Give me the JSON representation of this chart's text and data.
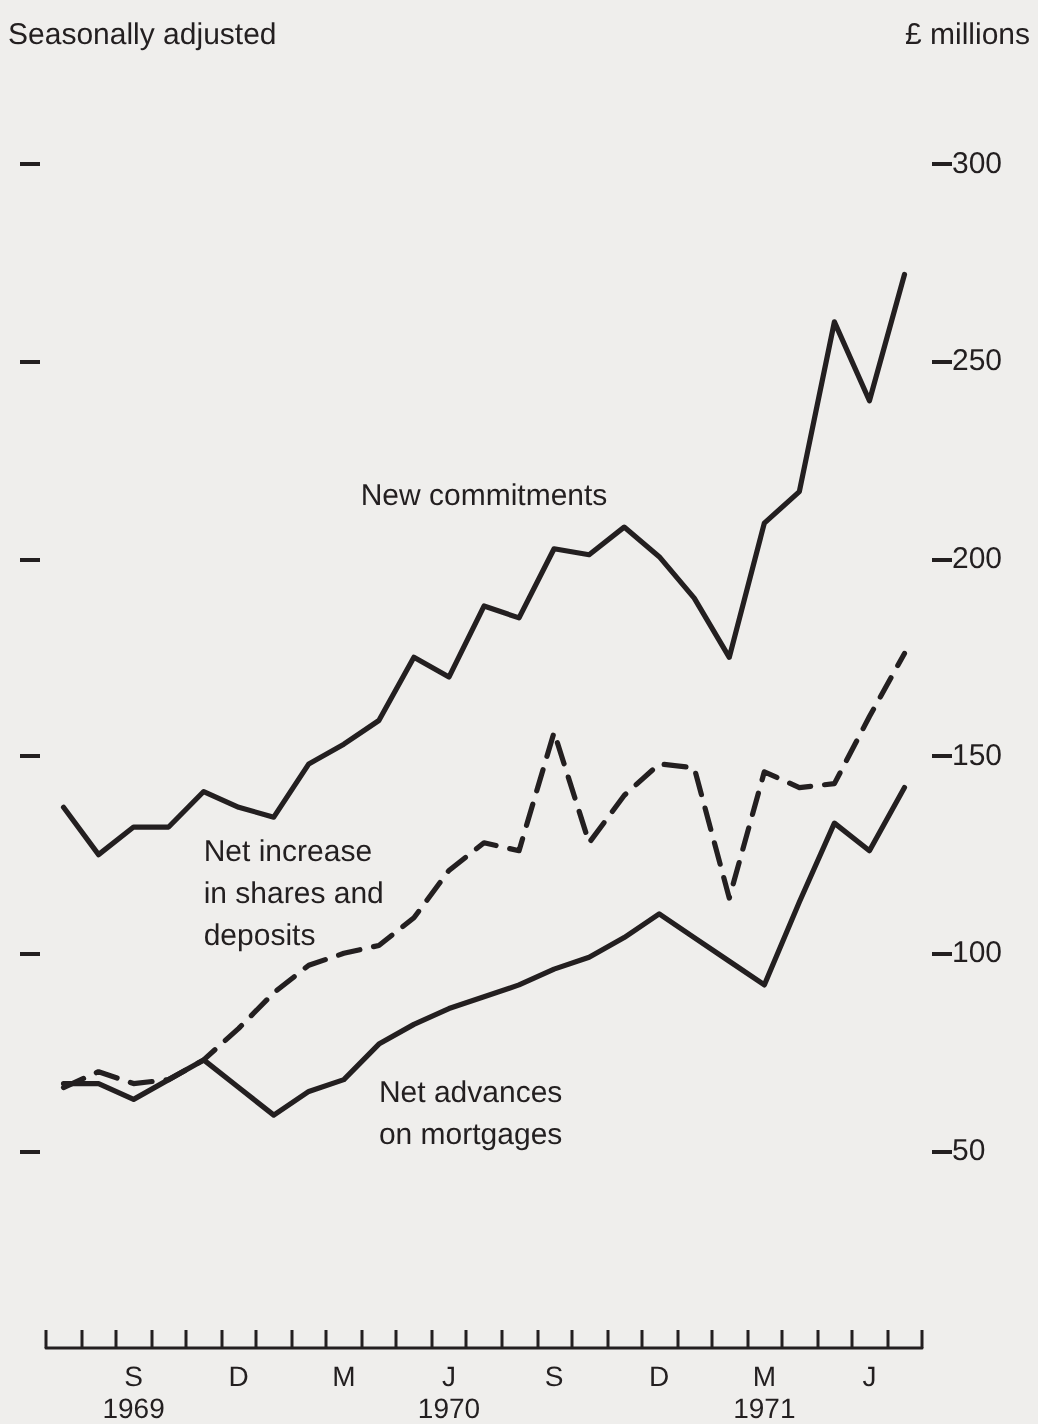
{
  "chart_data": {
    "type": "line",
    "ylabel": "£ millions",
    "annotations": [
      "Seasonally adjusted"
    ],
    "categories": [
      null,
      null,
      "S\n1969",
      null,
      null,
      "D",
      null,
      null,
      "M",
      null,
      null,
      "J\n1970",
      null,
      null,
      "S",
      null,
      null,
      "D",
      null,
      null,
      "M\n1971",
      null,
      null,
      "J",
      null
    ],
    "series": [
      {
        "name": "New commitments",
        "color": "#231f20",
        "line_style": "solid",
        "values": [
          137,
          125,
          132,
          132,
          141,
          137,
          134.5,
          148,
          153,
          159,
          175,
          170,
          188,
          185,
          202.5,
          201,
          208,
          200.5,
          190,
          175,
          209,
          217,
          260,
          240,
          272
        ]
      },
      {
        "name": "Net increase in shares and deposits",
        "color": "#231f20",
        "line_style": "dashed",
        "values": [
          66,
          70,
          67,
          68,
          73,
          81,
          90,
          97,
          100,
          102,
          109,
          121,
          128,
          126,
          156,
          128,
          140,
          148,
          147,
          114,
          146,
          142,
          143,
          160,
          176
        ]
      },
      {
        "name": "Net advances on mortgages",
        "color": "#231f20",
        "line_style": "solid",
        "values": [
          67,
          67,
          63,
          68,
          73,
          66,
          59,
          65,
          68,
          77,
          82,
          86,
          89,
          92,
          96,
          99,
          104,
          110,
          104,
          98,
          92,
          113,
          133,
          126,
          142
        ]
      }
    ],
    "ylim": [
      0,
      300
    ],
    "yticks": [
      50,
      100,
      150,
      200,
      250,
      300
    ],
    "tick_labels": "y2side",
    "grid": false,
    "legend": false,
    "marker": "none"
  }
}
